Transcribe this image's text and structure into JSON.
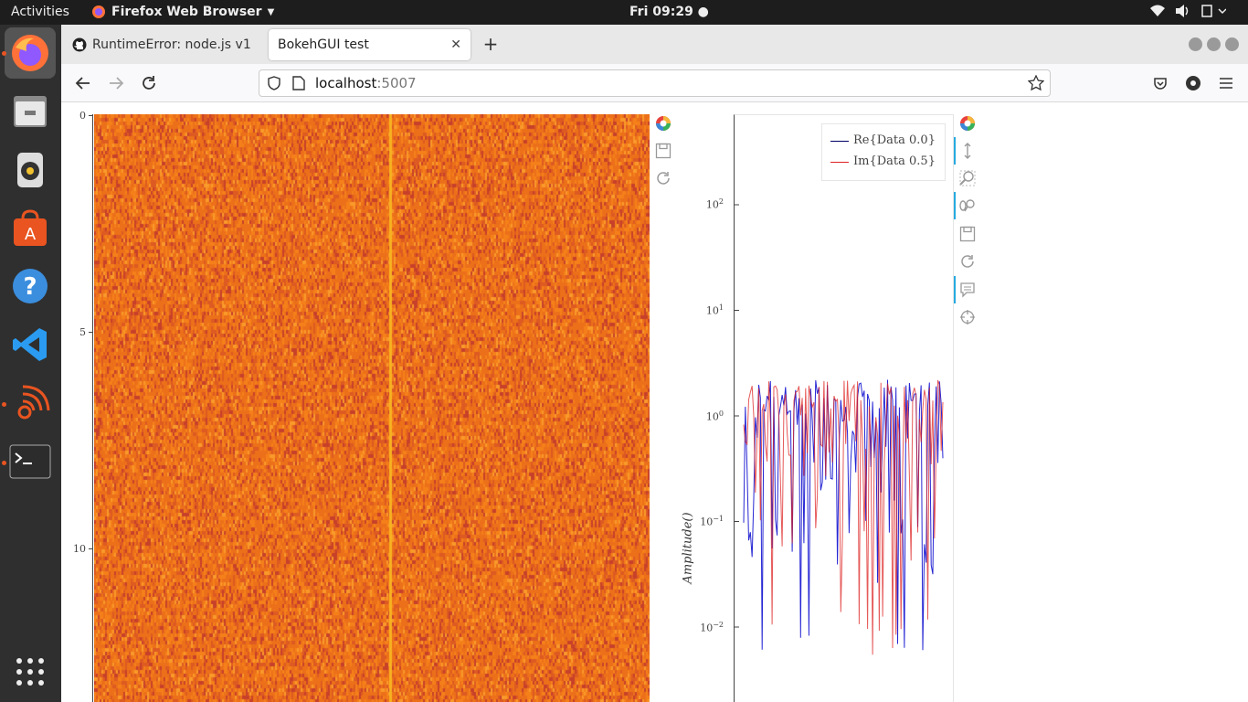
{
  "topbar": {
    "activities": "Activities",
    "app_name": "Firefox Web Browser",
    "clock": "Fri 09:29"
  },
  "dock": {
    "items": [
      {
        "name": "firefox-icon",
        "running": true
      },
      {
        "name": "files-icon",
        "running": false
      },
      {
        "name": "rhythmbox-icon",
        "running": false
      },
      {
        "name": "software-center-icon",
        "running": false
      },
      {
        "name": "help-icon",
        "running": false
      },
      {
        "name": "vscode-icon",
        "running": false
      },
      {
        "name": "grafana-icon",
        "running": true
      },
      {
        "name": "terminal-icon",
        "running": true
      }
    ]
  },
  "tabs": [
    {
      "title": "RuntimeError: node.js v1",
      "active": false
    },
    {
      "title": "BokehGUI test",
      "active": true
    }
  ],
  "url": {
    "host": "localhost",
    "port": ":5007"
  },
  "heatmap": {
    "yticks": [
      "0",
      "5",
      "10"
    ]
  },
  "lineplot": {
    "ylabel": "Amplitude()",
    "legend": [
      {
        "label": "Re{Data 0.0}",
        "color": "#0000cc"
      },
      {
        "label": "Im{Data 0.5}",
        "color": "#dd2222"
      }
    ],
    "yticks": [
      {
        "base": "10",
        "exp": "2"
      },
      {
        "base": "10",
        "exp": "1"
      },
      {
        "base": "10",
        "exp": "0"
      },
      {
        "base": "10",
        "exp": "−1"
      },
      {
        "base": "10",
        "exp": "−2"
      }
    ]
  },
  "chart_data": [
    {
      "type": "heatmap",
      "ylabel": "",
      "xlabel": "",
      "yticks": [
        0,
        5,
        10
      ],
      "ylim": [
        0,
        13.5
      ],
      "colormap": "orange-red"
    },
    {
      "type": "line",
      "yscale": "log",
      "ylabel": "Amplitude()",
      "ylim": [
        0.003,
        800
      ],
      "series": [
        {
          "name": "Re{Data 0.0}",
          "color": "#0000cc"
        },
        {
          "name": "Im{Data 0.5}",
          "color": "#dd2222"
        }
      ],
      "legend_position": "top-right"
    }
  ]
}
